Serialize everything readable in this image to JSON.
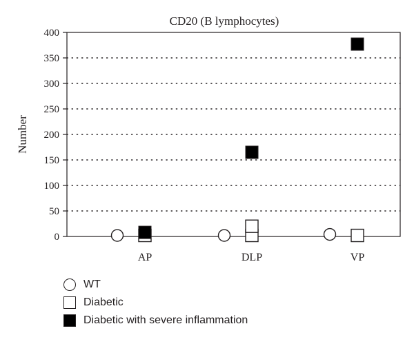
{
  "chart_data": {
    "type": "scatter",
    "title": "CD20 (B lymphocytes)",
    "xlabel": "",
    "ylabel": "Number",
    "categories": [
      "AP",
      "DLP",
      "VP"
    ],
    "ylim": [
      0,
      400
    ],
    "yticks": [
      0,
      50,
      100,
      150,
      200,
      250,
      300,
      350,
      400
    ],
    "grid": "horizontal dotted",
    "legend_position": "bottom-left",
    "series": [
      {
        "name": "WT",
        "marker": "circle-open",
        "points": [
          {
            "category": "AP",
            "value": 2
          },
          {
            "category": "DLP",
            "value": 2
          },
          {
            "category": "VP",
            "value": 4
          }
        ]
      },
      {
        "name": "Diabetic",
        "marker": "square-open",
        "points": [
          {
            "category": "AP",
            "value": 2
          },
          {
            "category": "DLP",
            "value": 2
          },
          {
            "category": "DLP",
            "value": 20
          },
          {
            "category": "VP",
            "value": 2
          }
        ]
      },
      {
        "name": "Diabetic with severe inflammation",
        "marker": "square-filled",
        "points": [
          {
            "category": "AP",
            "value": 8
          },
          {
            "category": "DLP",
            "value": 165
          },
          {
            "category": "VP",
            "value": 377
          }
        ]
      }
    ]
  }
}
